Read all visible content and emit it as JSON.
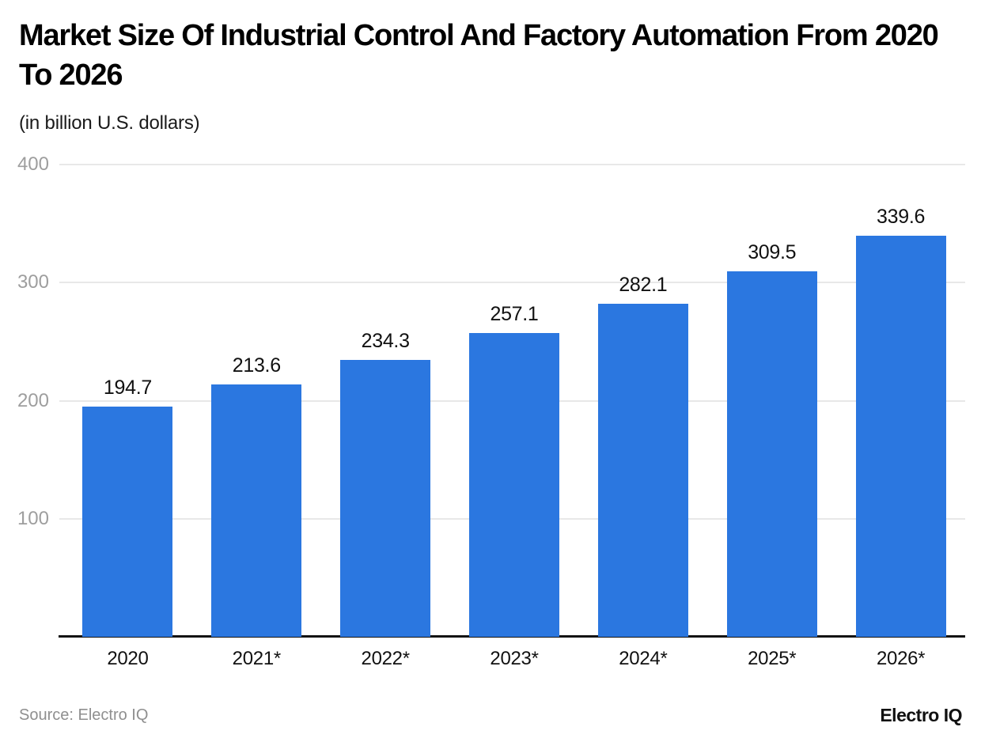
{
  "header": {
    "title": "Market Size Of Industrial Control And Factory Automation From 2020 To 2026",
    "subtitle": "(in billion U.S. dollars)"
  },
  "footer": {
    "source_label": "Source: Electro IQ",
    "brand": "Electro IQ"
  },
  "colors": {
    "bar": "#2b77e0",
    "grid": "#e8e8e8",
    "axis": "#121212",
    "y_tick_label": "#9e9e9e",
    "data_label": "#111111",
    "source_text": "#8f8f8f"
  },
  "chart_data": {
    "type": "bar",
    "categories": [
      "2020",
      "2021*",
      "2022*",
      "2023*",
      "2024*",
      "2025*",
      "2026*"
    ],
    "values": [
      194.7,
      213.6,
      234.3,
      257.1,
      282.1,
      309.5,
      339.6
    ],
    "title": "Market Size Of Industrial Control And Factory Automation From 2020 To 2026",
    "subtitle": "(in billion U.S. dollars)",
    "xlabel": "",
    "ylabel": "",
    "ylim": [
      0,
      400
    ],
    "yticks": [
      100,
      200,
      300,
      400
    ],
    "grid": true,
    "legend": false,
    "bar_color": "#2b77e0",
    "source": "Electro IQ"
  }
}
